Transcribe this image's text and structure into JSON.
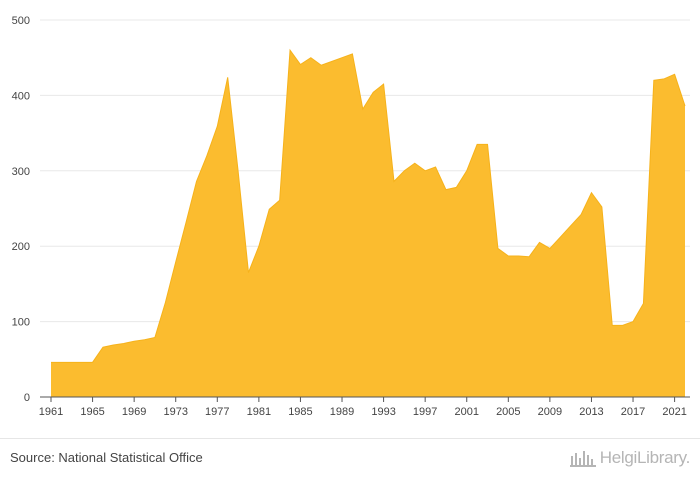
{
  "chart_data": {
    "type": "area",
    "title": "",
    "xlabel": "",
    "ylabel": "",
    "x": [
      1961,
      1962,
      1963,
      1964,
      1965,
      1966,
      1967,
      1968,
      1969,
      1970,
      1971,
      1972,
      1973,
      1974,
      1975,
      1976,
      1977,
      1978,
      1979,
      1980,
      1981,
      1982,
      1983,
      1984,
      1985,
      1986,
      1987,
      1988,
      1989,
      1990,
      1991,
      1992,
      1993,
      1994,
      1995,
      1996,
      1997,
      1998,
      1999,
      2000,
      2001,
      2002,
      2003,
      2004,
      2005,
      2006,
      2007,
      2008,
      2009,
      2010,
      2011,
      2012,
      2013,
      2014,
      2015,
      2016,
      2017,
      2018,
      2019,
      2020,
      2021,
      2022
    ],
    "series": [
      {
        "values": [
          46,
          46,
          46,
          46,
          46,
          66,
          69,
          71,
          74,
          76,
          79,
          125,
          179,
          232,
          286,
          320,
          359,
          424,
          300,
          165,
          200,
          249,
          261,
          460,
          441,
          450,
          440,
          445,
          450,
          455,
          382,
          404,
          415,
          286,
          300,
          310,
          300,
          305,
          275,
          278,
          300,
          335,
          335,
          197,
          187,
          187,
          186,
          205,
          197,
          212,
          227,
          242,
          271,
          252,
          95,
          95,
          100,
          124,
          420,
          422,
          428,
          386
        ]
      }
    ],
    "x_ticks": [
      "1961",
      "1965",
      "1969",
      "1973",
      "1977",
      "1981",
      "1985",
      "1989",
      "1993",
      "1997",
      "2001",
      "2005",
      "2009",
      "2013",
      "2017",
      "2021"
    ],
    "y_ticks": [
      "0",
      "100",
      "200",
      "300",
      "400",
      "500"
    ],
    "ylim": [
      0,
      500
    ],
    "xlim": [
      1961,
      2022
    ],
    "grid": true,
    "fill_color": "#fbbc2f",
    "line_color": "#f6b21b"
  },
  "footer": {
    "source": "Source: National Statistical Office",
    "brand": "HelgiLibrary."
  }
}
